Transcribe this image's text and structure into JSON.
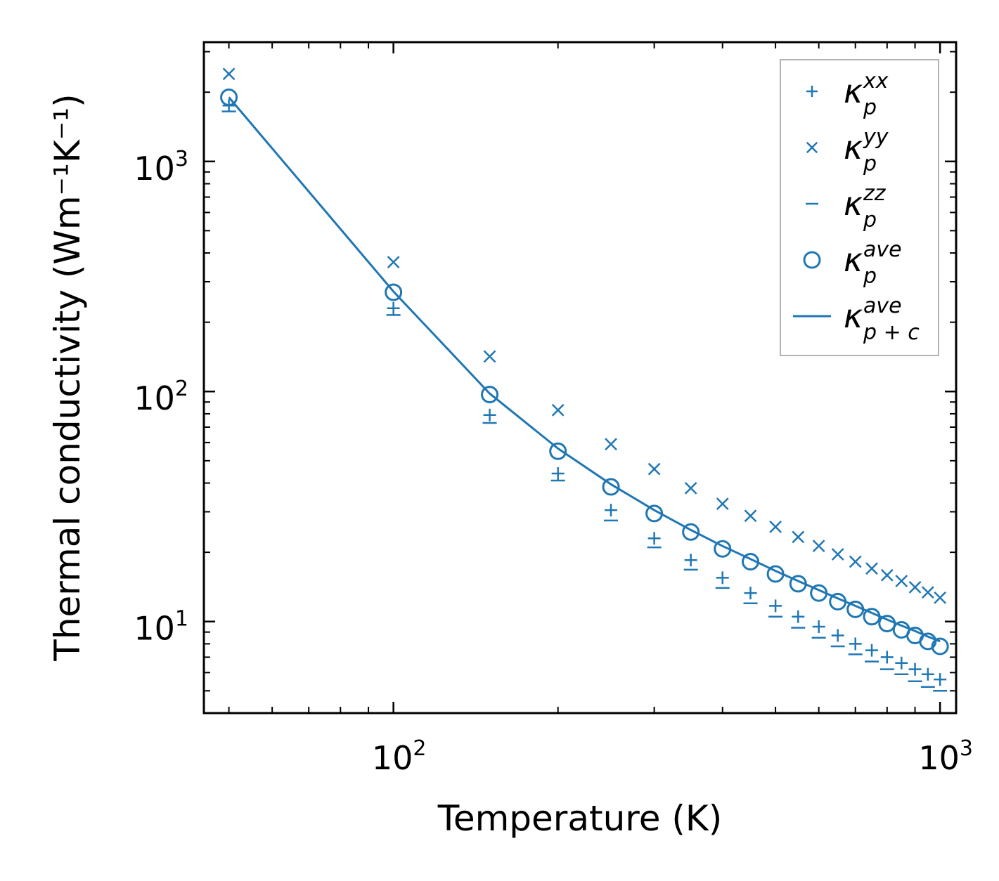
{
  "chart_data": {
    "type": "scatter",
    "xscale": "log",
    "yscale": "log",
    "xlabel": "Temperature (K)",
    "ylabel": "Thermal conductivity (Wm⁻¹K⁻¹)",
    "xlim": [
      45,
      1070
    ],
    "ylim": [
      4.0,
      3300
    ],
    "x_major_ticks": [
      {
        "value": 100,
        "base": "10",
        "exp": "2"
      },
      {
        "value": 1000,
        "base": "10",
        "exp": "3"
      }
    ],
    "y_major_ticks": [
      {
        "value": 10,
        "base": "10",
        "exp": "1"
      },
      {
        "value": 100,
        "base": "10",
        "exp": "2"
      },
      {
        "value": 1000,
        "base": "10",
        "exp": "3"
      }
    ],
    "x": [
      50,
      100,
      150,
      200,
      250,
      300,
      350,
      400,
      450,
      500,
      550,
      600,
      650,
      700,
      750,
      800,
      850,
      900,
      950,
      1000
    ],
    "series": [
      {
        "name": "kappa_p_xx",
        "marker": "plus",
        "symbol": "κ",
        "sub": "p",
        "sup": "xx",
        "values": [
          1750,
          230,
          79,
          44,
          30.5,
          23,
          18.5,
          15.5,
          13.3,
          11.7,
          10.5,
          9.5,
          8.7,
          8.0,
          7.5,
          7.0,
          6.6,
          6.2,
          5.9,
          5.6
        ]
      },
      {
        "name": "kappa_p_yy",
        "marker": "x",
        "symbol": "κ",
        "sub": "p",
        "sup": "yy",
        "values": [
          2400,
          365,
          142,
          83,
          59,
          46,
          38,
          32.5,
          28.8,
          25.8,
          23.3,
          21.3,
          19.6,
          18.2,
          17.0,
          15.9,
          15.0,
          14.1,
          13.4,
          12.7
        ]
      },
      {
        "name": "kappa_p_zz",
        "marker": "dash",
        "symbol": "κ",
        "sub": "p",
        "sup": "zz",
        "values": [
          1650,
          215,
          73,
          41,
          27.5,
          21,
          16.8,
          14.0,
          12.0,
          10.5,
          9.4,
          8.5,
          7.8,
          7.2,
          6.7,
          6.2,
          5.9,
          5.5,
          5.2,
          5.0
        ]
      },
      {
        "name": "kappa_p_ave",
        "marker": "circle",
        "symbol": "κ",
        "sub": "p",
        "sup": "ave",
        "values": [
          1900,
          270,
          97,
          55,
          38.5,
          29.5,
          24.5,
          20.7,
          18.2,
          16.1,
          14.6,
          13.3,
          12.2,
          11.3,
          10.5,
          9.8,
          9.2,
          8.7,
          8.2,
          7.8
        ]
      },
      {
        "name": "kappa_pc_ave",
        "marker": "line",
        "symbol": "κ",
        "sub": "p + c",
        "sup": "ave",
        "values": [
          1900,
          272,
          98,
          56.5,
          39.5,
          30.5,
          25.0,
          21.3,
          18.7,
          16.6,
          15.0,
          13.7,
          12.6,
          11.7,
          10.9,
          10.2,
          9.6,
          9.1,
          8.6,
          8.2
        ]
      }
    ],
    "legend_position": "top-right",
    "colors": {
      "series": "#1f77b4",
      "axes": "#000000",
      "legend_border": "#999999"
    }
  }
}
